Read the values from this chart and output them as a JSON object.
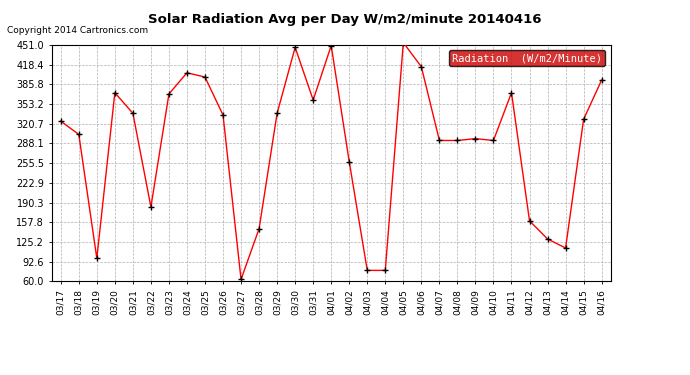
{
  "title": "Solar Radiation Avg per Day W/m2/minute 20140416",
  "copyright_text": "Copyright 2014 Cartronics.com",
  "legend_label": "Radiation  (W/m2/Minute)",
  "dates": [
    "03/17",
    "03/18",
    "03/19",
    "03/20",
    "03/21",
    "03/22",
    "03/23",
    "03/24",
    "03/25",
    "03/26",
    "03/27",
    "03/28",
    "03/29",
    "03/30",
    "03/31",
    "04/01",
    "04/02",
    "04/03",
    "04/04",
    "04/05",
    "04/06",
    "04/07",
    "04/08",
    "04/09",
    "04/10",
    "04/11",
    "04/12",
    "04/13",
    "04/14",
    "04/15",
    "04/16"
  ],
  "values": [
    325.0,
    303.0,
    98.0,
    372.0,
    338.0,
    183.0,
    370.0,
    405.0,
    398.0,
    335.0,
    63.0,
    147.0,
    338.0,
    447.0,
    360.0,
    450.0,
    258.0,
    78.0,
    78.0,
    455.0,
    415.0,
    293.0,
    293.0,
    296.0,
    293.0,
    372.0,
    160.0,
    130.0,
    115.0,
    328.0,
    393.0
  ],
  "ylim": [
    60.0,
    451.0
  ],
  "yticks": [
    60.0,
    92.6,
    125.2,
    157.8,
    190.3,
    222.9,
    255.5,
    288.1,
    320.7,
    353.2,
    385.8,
    418.4,
    451.0
  ],
  "line_color": "#ff0000",
  "marker_color": "#000000",
  "background_color": "#ffffff",
  "grid_color": "#b0b0b0",
  "legend_bg": "#cc0000",
  "legend_fg": "#ffffff",
  "title_fontsize": 9.5,
  "copyright_fontsize": 6.5,
  "tick_fontsize": 6.5,
  "ytick_fontsize": 7.0,
  "legend_fontsize": 7.5
}
